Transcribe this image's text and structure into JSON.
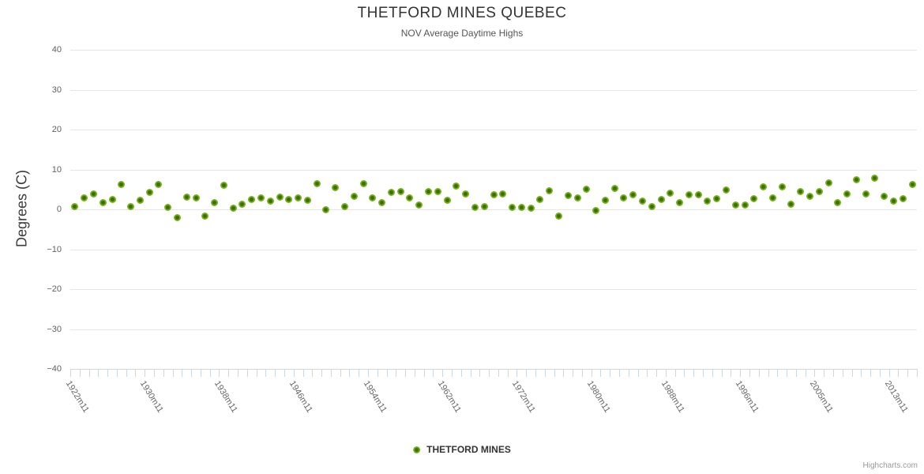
{
  "title": "THETFORD MINES QUEBEC",
  "subtitle": "NOV Average Daytime Highs",
  "y_axis_title": "Degrees (C)",
  "legend": {
    "label": "THETFORD MINES"
  },
  "credits": "Highcharts.com",
  "colors": {
    "marker_outer": "#76b41e",
    "marker_inner": "#3f6c00",
    "gridline": "#e6e6e6",
    "axis_line": "#ccd6eb",
    "title_text": "#333333",
    "label_text": "#666666"
  },
  "chart_data": {
    "type": "scatter",
    "title": "THETFORD MINES QUEBEC",
    "subtitle": "NOV Average Daytime Highs",
    "xlabel": "",
    "ylabel": "Degrees (C)",
    "ylim": [
      -40,
      40
    ],
    "y_ticks": [
      -40,
      -30,
      -20,
      -10,
      0,
      10,
      20,
      30,
      40
    ],
    "grid": "horizontal",
    "legend_position": "bottom-center",
    "x_label_step": 8,
    "x_labels_shown": [
      "1922m11",
      "1930m11",
      "1938m11",
      "1946m11",
      "1954m11",
      "1962m11",
      "1972m11",
      "1980m11",
      "1988m11",
      "1996m11",
      "2005m11",
      "2013m11"
    ],
    "categories": [
      "1922m11",
      "1923m11",
      "1924m11",
      "1925m11",
      "1926m11",
      "1927m11",
      "1928m11",
      "1929m11",
      "1930m11",
      "1931m11",
      "1932m11",
      "1933m11",
      "1934m11",
      "1935m11",
      "1936m11",
      "1937m11",
      "1938m11",
      "1939m11",
      "1940m11",
      "1941m11",
      "1942m11",
      "1943m11",
      "1944m11",
      "1945m11",
      "1946m11",
      "1947m11",
      "1948m11",
      "1949m11",
      "1950m11",
      "1951m11",
      "1952m11",
      "1953m11",
      "1954m11",
      "1955m11",
      "1956m11",
      "1957m11",
      "1958m11",
      "1959m11",
      "1960m11",
      "1961m11",
      "1962m11",
      "1963m11",
      "1964m11",
      "1966m11",
      "1967m11",
      "1968m11",
      "1970m11",
      "1971m11",
      "1972m11",
      "1973m11",
      "1974m11",
      "1975m11",
      "1976m11",
      "1977m11",
      "1978m11",
      "1979m11",
      "1980m11",
      "1981m11",
      "1982m11",
      "1983m11",
      "1984m11",
      "1985m11",
      "1986m11",
      "1987m11",
      "1988m11",
      "1989m11",
      "1990m11",
      "1991m11",
      "1992m11",
      "1993m11",
      "1994m11",
      "1995m11",
      "1996m11",
      "1997m11",
      "1998m11",
      "1999m11",
      "2000m11",
      "2002m11",
      "2003m11",
      "2004m11",
      "2005m11",
      "2006m11",
      "2007m11",
      "2008m11",
      "2009m11",
      "2010m11",
      "2011m11",
      "2012m11",
      "2013m11",
      "2014m11",
      "2015m11"
    ],
    "series": [
      {
        "name": "THETFORD MINES",
        "color": "#76b41e",
        "values": [
          0.7,
          2.9,
          3.8,
          1.6,
          2.5,
          6.3,
          0.7,
          2.3,
          4.2,
          6.2,
          0.5,
          -2.1,
          3.1,
          2.8,
          -1.6,
          1.6,
          6.0,
          0.3,
          1.3,
          2.4,
          2.9,
          2.0,
          3.1,
          2.4,
          2.9,
          2.3,
          6.4,
          0.0,
          5.4,
          0.7,
          3.3,
          6.5,
          2.8,
          1.6,
          4.3,
          4.4,
          2.9,
          1.1,
          4.4,
          4.4,
          2.2,
          5.9,
          3.9,
          0.5,
          0.7,
          3.6,
          3.9,
          0.5,
          0.5,
          0.3,
          2.5,
          4.6,
          -1.6,
          3.4,
          2.8,
          5.0,
          -0.3,
          2.3,
          5.2,
          2.8,
          3.7,
          2.1,
          0.7,
          2.4,
          4.1,
          1.6,
          3.6,
          3.7,
          2.1,
          2.6,
          4.9,
          1.0,
          1.1,
          2.6,
          5.7,
          2.9,
          5.7,
          1.3,
          4.4,
          3.3,
          4.4,
          6.7,
          1.6,
          3.9,
          7.5,
          3.9,
          7.8,
          3.3,
          2.1,
          2.6,
          6.2
        ]
      }
    ]
  }
}
